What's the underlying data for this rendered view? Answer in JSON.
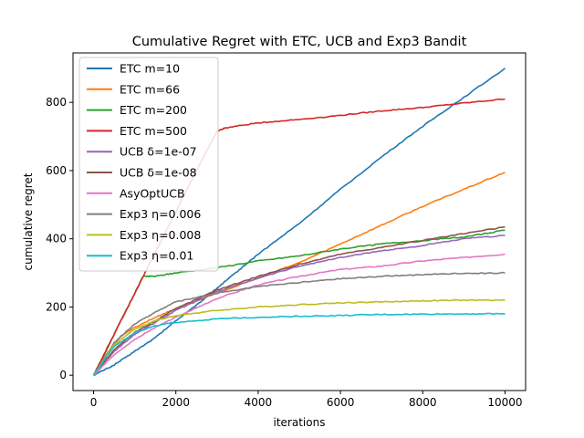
{
  "chart_data": {
    "type": "line",
    "title": "Cumulative Regret with ETC, UCB and Exp3 Bandit",
    "xlabel": "iterations",
    "ylabel": "cumulative regret",
    "xlim": [
      -500,
      10500
    ],
    "ylim": [
      -45,
      945
    ],
    "xticks": [
      0,
      2000,
      4000,
      6000,
      8000,
      10000
    ],
    "yticks": [
      0,
      200,
      400,
      600,
      800
    ],
    "grid": false,
    "legend_position": "top-left",
    "series": [
      {
        "name": "ETC m=10",
        "color": "#1f77b4",
        "x": [
          0,
          500,
          1000,
          1500,
          2000,
          2500,
          3000,
          3500,
          4000,
          5000,
          6000,
          7000,
          8000,
          9000,
          10000
        ],
        "y": [
          0,
          30,
          70,
          110,
          160,
          205,
          255,
          305,
          355,
          445,
          545,
          640,
          730,
          815,
          900
        ]
      },
      {
        "name": "ETC m=66",
        "color": "#ff7f0e",
        "x": [
          0,
          300,
          660,
          1000,
          1500,
          2000,
          3000,
          4000,
          5000,
          6000,
          7000,
          8000,
          9000,
          10000
        ],
        "y": [
          0,
          60,
          115,
          140,
          170,
          195,
          240,
          285,
          330,
          385,
          440,
          495,
          545,
          595
        ]
      },
      {
        "name": "ETC m=200",
        "color": "#2ca02c",
        "x": [
          0,
          300,
          600,
          900,
          1200,
          1500,
          2000,
          3000,
          4000,
          5000,
          6000,
          7000,
          8000,
          9000,
          10000
        ],
        "y": [
          0,
          70,
          145,
          215,
          290,
          290,
          300,
          315,
          335,
          350,
          370,
          385,
          395,
          405,
          425
        ]
      },
      {
        "name": "ETC m=500",
        "color": "#d62728",
        "x": [
          0,
          500,
          1000,
          1500,
          2000,
          2500,
          3000,
          3200,
          4000,
          5000,
          6000,
          7000,
          8000,
          9000,
          10000
        ],
        "y": [
          0,
          120,
          240,
          360,
          480,
          600,
          715,
          725,
          740,
          750,
          762,
          775,
          785,
          798,
          810
        ]
      },
      {
        "name": "UCB δ=1e-07",
        "color": "#9467bd",
        "x": [
          0,
          500,
          1000,
          1500,
          2000,
          3000,
          4000,
          5000,
          6000,
          7000,
          8000,
          9000,
          10000
        ],
        "y": [
          0,
          70,
          120,
          155,
          190,
          245,
          285,
          320,
          345,
          365,
          380,
          400,
          410
        ]
      },
      {
        "name": "UCB δ=1e-08",
        "color": "#8c564b",
        "x": [
          0,
          500,
          1000,
          1500,
          2000,
          3000,
          4000,
          5000,
          6000,
          7000,
          8000,
          9000,
          10000
        ],
        "y": [
          0,
          75,
          125,
          160,
          195,
          250,
          290,
          325,
          355,
          375,
          395,
          415,
          435
        ]
      },
      {
        "name": "AsyOptUCB",
        "color": "#e377c2",
        "x": [
          0,
          500,
          1000,
          1500,
          2000,
          3000,
          4000,
          5000,
          6000,
          7000,
          8000,
          9000,
          10000
        ],
        "y": [
          0,
          60,
          105,
          140,
          170,
          225,
          265,
          290,
          310,
          320,
          335,
          345,
          355
        ]
      },
      {
        "name": "Exp3 η=0.006",
        "color": "#7f7f7f",
        "x": [
          0,
          500,
          1000,
          1500,
          2000,
          3000,
          4000,
          5000,
          6000,
          7000,
          8000,
          9000,
          10000
        ],
        "y": [
          0,
          95,
          150,
          185,
          215,
          240,
          260,
          272,
          283,
          290,
          295,
          299,
          300
        ]
      },
      {
        "name": "Exp3 η=0.008",
        "color": "#bcbd22",
        "x": [
          0,
          500,
          1000,
          1500,
          2000,
          3000,
          4000,
          5000,
          6000,
          7000,
          8000,
          9000,
          10000
        ],
        "y": [
          0,
          90,
          135,
          160,
          175,
          190,
          200,
          207,
          212,
          215,
          218,
          220,
          220
        ]
      },
      {
        "name": "Exp3 η=0.01",
        "color": "#17becf",
        "x": [
          0,
          500,
          1000,
          1500,
          2000,
          3000,
          4000,
          5000,
          6000,
          7000,
          8000,
          9000,
          10000
        ],
        "y": [
          0,
          85,
          125,
          145,
          155,
          165,
          170,
          173,
          175,
          178,
          179,
          180,
          180
        ]
      }
    ]
  }
}
